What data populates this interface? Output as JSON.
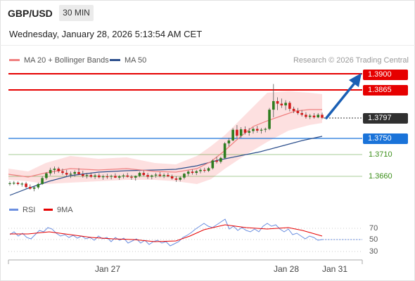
{
  "header": {
    "symbol": "GBP/USD",
    "timeframe": "30 MIN",
    "datetime": "Wednesday, January 28, 2026 5:13:54 AM CET"
  },
  "legend": {
    "ma20_label": "MA 20 + Bollinger Bands",
    "ma50_label": "MA 50",
    "credit": "Research © 2026 Trading Central",
    "ma20_color": "#f08080",
    "ma50_color": "#2c4f8c"
  },
  "levels": {
    "r2": "1.3900",
    "r1": "1.3865",
    "current": "1.3797",
    "pivot": "1.3750",
    "s1": "1.3710",
    "s2": "1.3660"
  },
  "rsi": {
    "rsi_label": "RSI",
    "ma_label": "9MA",
    "rsi_color": "#6b8fe0",
    "ma_color": "#e60000",
    "lvl70": "70",
    "lvl50": "50",
    "lvl30": "30"
  },
  "x_axis": {
    "labels": [
      "Jan 27",
      "Jan 28",
      "Jan 31"
    ]
  },
  "colors": {
    "resistance": "#e60000",
    "pivot": "#1a73d9",
    "support": "#3c8f1a",
    "bullish": "#2e7d1f",
    "bearish": "#d31a1a",
    "band_fill": "#fde0e0"
  },
  "chart_data": {
    "type": "candlestick",
    "ylim": [
      1.362,
      1.3915
    ],
    "candles": [
      [
        1.3643,
        1.3648,
        1.3638,
        1.3644
      ],
      [
        1.3644,
        1.3649,
        1.364,
        1.3645
      ],
      [
        1.3645,
        1.3648,
        1.3639,
        1.3642
      ],
      [
        1.3642,
        1.3646,
        1.3636,
        1.3643
      ],
      [
        1.3643,
        1.3647,
        1.3632,
        1.3635
      ],
      [
        1.3635,
        1.3641,
        1.3629,
        1.3631
      ],
      [
        1.3631,
        1.3638,
        1.3625,
        1.3634
      ],
      [
        1.3634,
        1.3645,
        1.363,
        1.3642
      ],
      [
        1.3642,
        1.366,
        1.364,
        1.3656
      ],
      [
        1.3656,
        1.367,
        1.3652,
        1.3667
      ],
      [
        1.3667,
        1.368,
        1.3662,
        1.3675
      ],
      [
        1.3675,
        1.3683,
        1.3666,
        1.3678
      ],
      [
        1.3678,
        1.3682,
        1.3668,
        1.3672
      ],
      [
        1.3672,
        1.3678,
        1.3664,
        1.3668
      ],
      [
        1.3668,
        1.3675,
        1.366,
        1.3664
      ],
      [
        1.3664,
        1.3671,
        1.3656,
        1.3666
      ],
      [
        1.3666,
        1.3674,
        1.3659,
        1.367
      ],
      [
        1.367,
        1.3679,
        1.3663,
        1.3665
      ],
      [
        1.3665,
        1.3673,
        1.3657,
        1.3661
      ],
      [
        1.3661,
        1.3668,
        1.3655,
        1.3663
      ],
      [
        1.3663,
        1.3669,
        1.3656,
        1.3659
      ],
      [
        1.3659,
        1.3666,
        1.3654,
        1.3662
      ],
      [
        1.3662,
        1.3667,
        1.3655,
        1.3658
      ],
      [
        1.3658,
        1.3664,
        1.3652,
        1.366
      ],
      [
        1.366,
        1.3666,
        1.3654,
        1.3659
      ],
      [
        1.3659,
        1.3664,
        1.3653,
        1.3661
      ],
      [
        1.3661,
        1.3667,
        1.3656,
        1.3657
      ],
      [
        1.3657,
        1.3663,
        1.3652,
        1.366
      ],
      [
        1.366,
        1.3666,
        1.3655,
        1.3662
      ],
      [
        1.3662,
        1.3668,
        1.3657,
        1.3659
      ],
      [
        1.3659,
        1.3663,
        1.3652,
        1.3657
      ],
      [
        1.3657,
        1.3662,
        1.365,
        1.3661
      ],
      [
        1.3661,
        1.3671,
        1.3658,
        1.3668
      ],
      [
        1.3668,
        1.3674,
        1.366,
        1.3663
      ],
      [
        1.3663,
        1.3668,
        1.3654,
        1.3659
      ],
      [
        1.3659,
        1.3664,
        1.3653,
        1.3662
      ],
      [
        1.3662,
        1.3668,
        1.3657,
        1.3664
      ],
      [
        1.3664,
        1.367,
        1.3658,
        1.3661
      ],
      [
        1.3661,
        1.3667,
        1.3656,
        1.3663
      ],
      [
        1.3663,
        1.3668,
        1.3658,
        1.366
      ],
      [
        1.366,
        1.3664,
        1.3652,
        1.3655
      ],
      [
        1.3655,
        1.366,
        1.3647,
        1.3652
      ],
      [
        1.3652,
        1.366,
        1.3648,
        1.3657
      ],
      [
        1.3657,
        1.3668,
        1.3653,
        1.3666
      ],
      [
        1.3666,
        1.3674,
        1.3661,
        1.3671
      ],
      [
        1.3671,
        1.3676,
        1.3664,
        1.3668
      ],
      [
        1.3668,
        1.3675,
        1.3663,
        1.3672
      ],
      [
        1.3672,
        1.3679,
        1.3667,
        1.3675
      ],
      [
        1.3675,
        1.368,
        1.3669,
        1.3673
      ],
      [
        1.3673,
        1.3682,
        1.367,
        1.3679
      ],
      [
        1.3679,
        1.37,
        1.3676,
        1.3697
      ],
      [
        1.3697,
        1.3706,
        1.369,
        1.3694
      ],
      [
        1.3694,
        1.3706,
        1.369,
        1.3703
      ],
      [
        1.3703,
        1.374,
        1.37,
        1.3737
      ],
      [
        1.3737,
        1.375,
        1.373,
        1.3744
      ],
      [
        1.3744,
        1.3773,
        1.3742,
        1.3769
      ],
      [
        1.3769,
        1.378,
        1.375,
        1.3755
      ],
      [
        1.3755,
        1.3775,
        1.375,
        1.377
      ],
      [
        1.377,
        1.3777,
        1.3758,
        1.3762
      ],
      [
        1.3762,
        1.3773,
        1.3755,
        1.3766
      ],
      [
        1.3766,
        1.3775,
        1.376,
        1.3771
      ],
      [
        1.3771,
        1.3778,
        1.3762,
        1.3767
      ],
      [
        1.3767,
        1.3773,
        1.376,
        1.3769
      ],
      [
        1.3769,
        1.3774,
        1.3763,
        1.3771
      ],
      [
        1.3771,
        1.382,
        1.3768,
        1.3816
      ],
      [
        1.3816,
        1.3876,
        1.3798,
        1.3836
      ],
      [
        1.3836,
        1.3845,
        1.3815,
        1.383
      ],
      [
        1.383,
        1.3842,
        1.382,
        1.3826
      ],
      [
        1.3826,
        1.3838,
        1.3815,
        1.3832
      ],
      [
        1.3832,
        1.3836,
        1.3812,
        1.3818
      ],
      [
        1.3818,
        1.3823,
        1.3808,
        1.3813
      ],
      [
        1.3813,
        1.382,
        1.3804,
        1.3808
      ],
      [
        1.3808,
        1.3815,
        1.38,
        1.3804
      ],
      [
        1.3804,
        1.381,
        1.3795,
        1.3799
      ],
      [
        1.3799,
        1.3806,
        1.3794,
        1.3802
      ],
      [
        1.3802,
        1.3808,
        1.3795,
        1.3798
      ],
      [
        1.3798,
        1.3808,
        1.3796,
        1.3804
      ],
      [
        1.3804,
        1.3809,
        1.3794,
        1.3797
      ]
    ]
  }
}
